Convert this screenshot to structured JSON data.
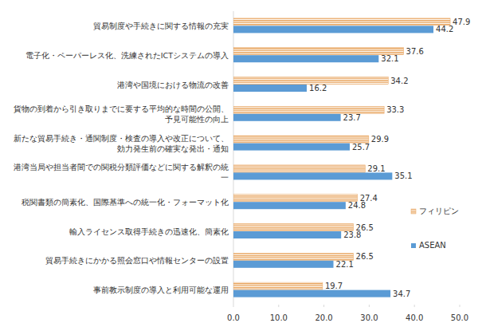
{
  "chart_data": {
    "type": "bar",
    "orientation": "horizontal",
    "data_labels": true,
    "grid": false,
    "legend": "right",
    "categories": [
      "貿易制度や手続きに関する情報の充実",
      "電子化・ペーパーレス化、洗練されたICTシステムの導入",
      "港湾や国境における物流の改善",
      "貨物の到着から引き取りまでに要する平均的な時間の公開、予見可能性の向上",
      "新たな貿易手続き・通関制度・検査の導入や改正について、効力発生前の確実な発出・通知",
      "港湾当局や担当者間での関税分類評価などに関する解釈の統一",
      "税関書類の簡素化、国際基準への統一化・フォーマット化",
      "輸入ライセンス取得手続きの迅速化、簡素化",
      "貿易手続きにかかる照会窓口や情報センターの設置",
      "事前教示制度の導入と利用可能な運用"
    ],
    "series": [
      {
        "name": "フィリピン",
        "color": "#e8a45e",
        "values": [
          47.9,
          37.6,
          34.2,
          33.3,
          29.9,
          29.1,
          27.4,
          26.5,
          26.5,
          19.7
        ]
      },
      {
        "name": "ASEAN",
        "color": "#5b9bd5",
        "values": [
          44.2,
          32.1,
          16.2,
          23.7,
          25.7,
          35.1,
          24.8,
          23.8,
          22.1,
          34.7
        ]
      }
    ],
    "xlim": [
      0,
      50
    ],
    "xticks": [
      {
        "value": 0,
        "label": "0.0"
      },
      {
        "value": 10,
        "label": "10.0"
      },
      {
        "value": 20,
        "label": "20.0"
      },
      {
        "value": 30,
        "label": "30.0"
      },
      {
        "value": 40,
        "label": "40.0"
      },
      {
        "value": 50,
        "label": "50.0"
      }
    ]
  }
}
